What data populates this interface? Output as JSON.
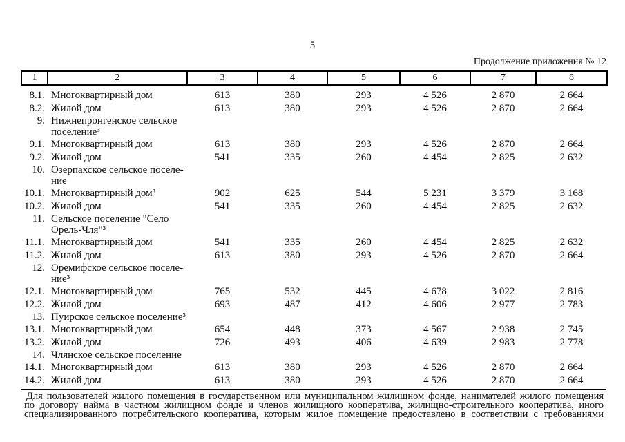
{
  "page": {
    "number": "5",
    "continuation_note": "Продолжение приложения № 12"
  },
  "table": {
    "header": [
      "1",
      "2",
      "3",
      "4",
      "5",
      "6",
      "7",
      "8"
    ],
    "rows": [
      {
        "num": "8.1.",
        "name": "Многоквартирный дом",
        "values": [
          "613",
          "380",
          "293",
          "4 526",
          "2 870",
          "2 664"
        ]
      },
      {
        "num": "8.2.",
        "name": "Жилой дом",
        "values": [
          "613",
          "380",
          "293",
          "4 526",
          "2 870",
          "2 664"
        ]
      },
      {
        "num": "9.",
        "name": "Нижнепронгенское сельское\nпоселение³",
        "values": []
      },
      {
        "num": "9.1.",
        "name": "Многоквартирный дом",
        "values": [
          "613",
          "380",
          "293",
          "4 526",
          "2 870",
          "2 664"
        ]
      },
      {
        "num": "9.2.",
        "name": "Жилой дом",
        "values": [
          "541",
          "335",
          "260",
          "4 454",
          "2 825",
          "2 632"
        ]
      },
      {
        "num": "10.",
        "name": "Озерпахское сельское поселе-\nние",
        "values": []
      },
      {
        "num": "10.1.",
        "name": "Многоквартирный дом³",
        "values": [
          "902",
          "625",
          "544",
          "5 231",
          "3 379",
          "3 168"
        ]
      },
      {
        "num": "10.2.",
        "name": "Жилой дом",
        "values": [
          "541",
          "335",
          "260",
          "4 454",
          "2 825",
          "2 632"
        ]
      },
      {
        "num": "11.",
        "name": "Сельское поселение \"Село\nОрель-Чля\"³",
        "values": []
      },
      {
        "num": "11.1.",
        "name": "Многоквартирный дом",
        "values": [
          "541",
          "335",
          "260",
          "4 454",
          "2 825",
          "2 632"
        ]
      },
      {
        "num": "11.2.",
        "name": "Жилой дом",
        "values": [
          "613",
          "380",
          "293",
          "4 526",
          "2 870",
          "2 664"
        ]
      },
      {
        "num": "12.",
        "name": "Оремифское сельское поселе-\nние³",
        "values": []
      },
      {
        "num": "12.1.",
        "name": "Многоквартирный дом",
        "values": [
          "765",
          "532",
          "445",
          "4 678",
          "3 022",
          "2 816"
        ]
      },
      {
        "num": "12.2.",
        "name": "Жилой дом",
        "values": [
          "693",
          "487",
          "412",
          "4 606",
          "2 977",
          "2 783"
        ]
      },
      {
        "num": "13.",
        "name": "Пуирское сельское поселение³",
        "values": []
      },
      {
        "num": "13.1.",
        "name": "Многоквартирный дом",
        "values": [
          "654",
          "448",
          "373",
          "4 567",
          "2 938",
          "2 745"
        ]
      },
      {
        "num": "13.2.",
        "name": "Жилой дом",
        "values": [
          "726",
          "493",
          "406",
          "4 639",
          "2 983",
          "2 778"
        ]
      },
      {
        "num": "14.",
        "name": "Члянское сельское поселение",
        "values": []
      },
      {
        "num": "14.1.",
        "name": "Многоквартирный дом",
        "values": [
          "613",
          "380",
          "293",
          "4 526",
          "2 870",
          "2 664"
        ]
      },
      {
        "num": "14.2.",
        "name": "Жилой дом",
        "values": [
          "613",
          "380",
          "293",
          "4 526",
          "2 870",
          "2 664"
        ]
      }
    ]
  },
  "footnote": {
    "lines": [
      "Для пользователей жилого помещения в государственном или муниципальном жилищном фонде, нанимателей жилого помещения",
      "по договору найма в частном жилищном фонде и членов жилищного кооператива, жилищно-строительного кооператива, иного",
      "специализированного потребительского кооператива, которым жилое помещение предоставлено в соответствии с требованиями"
    ]
  }
}
